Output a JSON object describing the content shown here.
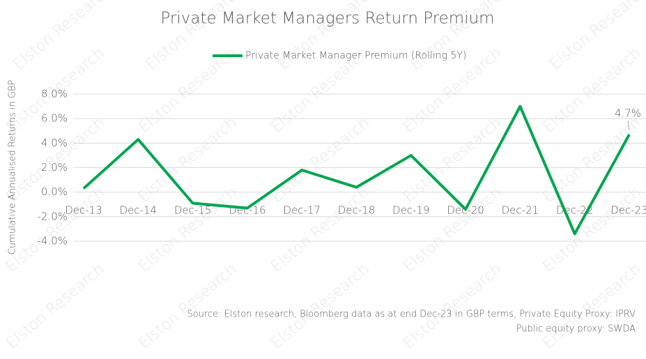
{
  "chart_data": {
    "type": "line",
    "title": "Private Market Managers Return Premium",
    "y_axis_label": "Cumulative Annualised Returns in GBP",
    "categories": [
      "Dec-13",
      "Dec-14",
      "Dec-15",
      "Dec-16",
      "Dec-17",
      "Dec-18",
      "Dec-19",
      "Dec-20",
      "Dec-21",
      "Dec-22",
      "Dec-23"
    ],
    "series": [
      {
        "name": "Private Market Manager Premium (Rolling 5Y)",
        "color": "#00a64f",
        "values": [
          0.3,
          4.3,
          -0.9,
          -1.3,
          1.8,
          0.4,
          3.0,
          -1.4,
          7.0,
          -3.4,
          4.7
        ],
        "value_labels": [
          null,
          null,
          null,
          null,
          null,
          null,
          null,
          null,
          null,
          null,
          "4.7%"
        ]
      }
    ],
    "ylim": [
      -4,
      8
    ],
    "yticks": [
      {
        "value": -4,
        "label": "-4.0%"
      },
      {
        "value": -2,
        "label": "-2.0%"
      },
      {
        "value": 0,
        "label": "0.0%"
      },
      {
        "value": 2,
        "label": "2.0%"
      },
      {
        "value": 4,
        "label": "4.0%"
      },
      {
        "value": 6,
        "label": "6.0%"
      },
      {
        "value": 8,
        "label": "8.0%"
      }
    ],
    "grid": true,
    "legend": "top",
    "source": [
      "Source: Elston research, Bloomberg data as at end Dec-23 in GBP terms,  Private Equity Proxy: IPRV",
      "Public equity proxy: SWDA"
    ],
    "watermark": "Elston Research"
  }
}
